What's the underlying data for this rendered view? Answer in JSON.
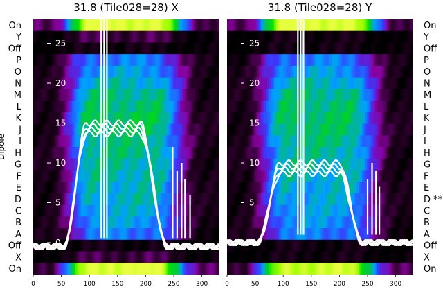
{
  "chart_data": [
    {
      "type": "heatmap",
      "title": "31.8 (Tile028=28) X",
      "ylabel": "Dipole",
      "xlim": [
        0,
        330
      ],
      "xticks": [
        0,
        50,
        100,
        150,
        200,
        250,
        300
      ],
      "overlay_ylim": [
        -4,
        28
      ],
      "overlay_yticks": [
        0,
        5,
        10,
        15,
        20,
        25
      ],
      "row_labels_left": [
        "On",
        "Y",
        "Off",
        "P",
        "O",
        "N",
        "M",
        "L",
        "K",
        "J",
        "I",
        "H",
        "G",
        "F",
        "E",
        "D",
        "C",
        "B",
        "A",
        "Off",
        "X",
        "On"
      ],
      "row_strength": [
        0.95,
        0.15,
        0.05,
        0.45,
        0.5,
        0.55,
        0.6,
        0.62,
        0.65,
        0.63,
        0.6,
        0.6,
        0.58,
        0.57,
        0.55,
        0.55,
        0.52,
        0.5,
        0.45,
        0.05,
        0.15,
        0.95
      ],
      "overlay": {
        "baseline": -0.5,
        "plateau": 15,
        "edges": [
          55,
          95,
          190,
          238
        ],
        "spikes": [
          {
            "x": 121,
            "y": 28
          },
          {
            "x": 126,
            "y": 28
          },
          {
            "x": 131,
            "y": 28
          },
          {
            "x": 248,
            "y": 12
          },
          {
            "x": 256,
            "y": 9
          },
          {
            "x": 264,
            "y": 10
          },
          {
            "x": 270,
            "y": 8
          },
          {
            "x": 279,
            "y": 6
          }
        ]
      }
    },
    {
      "type": "heatmap",
      "title": "31.8 (Tile028=28) Y",
      "xlim": [
        0,
        330
      ],
      "xticks": [
        0,
        50,
        100,
        150,
        200,
        250,
        300
      ],
      "overlay_ylim": [
        -4,
        28
      ],
      "overlay_yticks": [
        0,
        5,
        10,
        15,
        20,
        25
      ],
      "row_labels_right": [
        "On",
        "Y",
        "Off",
        "P",
        "O",
        "N",
        "M",
        "L",
        "K",
        "J",
        "I",
        "H",
        "G",
        "F",
        "E",
        "D **",
        "C",
        "B",
        "A",
        "Off",
        "X",
        "On"
      ],
      "row_strength": [
        0.95,
        0.05,
        0.05,
        0.45,
        0.5,
        0.55,
        0.6,
        0.62,
        0.63,
        0.62,
        0.6,
        0.58,
        0.57,
        0.55,
        0.53,
        0.52,
        0.5,
        0.48,
        0.45,
        0.05,
        0.05,
        0.9
      ],
      "overlay": {
        "baseline": 0,
        "plateau": 10,
        "edges": [
          55,
          95,
          200,
          240
        ],
        "spikes": [
          {
            "x": 126,
            "y": 28
          },
          {
            "x": 131,
            "y": 28
          },
          {
            "x": 136,
            "y": 28
          },
          {
            "x": 250,
            "y": 8
          },
          {
            "x": 258,
            "y": 10
          },
          {
            "x": 265,
            "y": 9
          },
          {
            "x": 271,
            "y": 7
          }
        ]
      }
    }
  ],
  "colors": {
    "colormap": [
      "#000000",
      "#2a0028",
      "#8a00a0",
      "#3a3aff",
      "#00a0ff",
      "#00c060",
      "#00e000",
      "#a0ff00",
      "#e8ff40"
    ],
    "overlay": "#ffffff"
  }
}
